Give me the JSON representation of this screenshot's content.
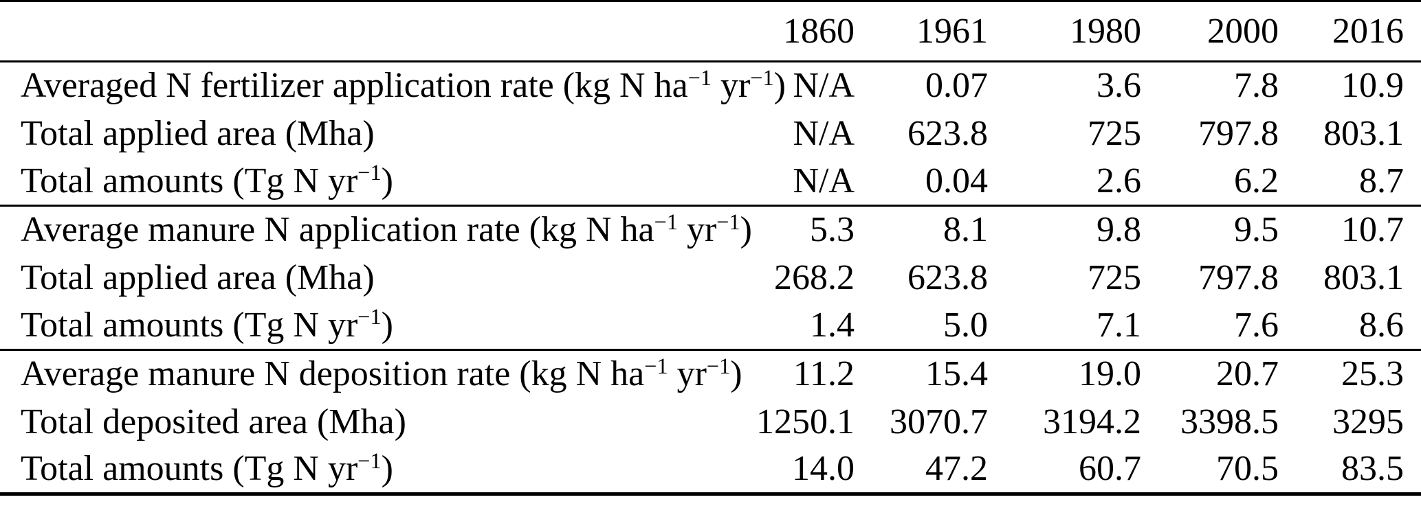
{
  "table": {
    "columns": [
      "1860",
      "1961",
      "1980",
      "2000",
      "2016"
    ],
    "sections": [
      {
        "name": "fertilizer",
        "rows": [
          {
            "label": "Averaged N fertilizer application rate (kg N ha^{−1} yr^{−1})",
            "values": [
              "N/A",
              "0.07",
              "3.6",
              "7.8",
              "10.9"
            ]
          },
          {
            "label": "Total applied area (Mha)",
            "values": [
              "N/A",
              "623.8",
              "725",
              "797.8",
              "803.1"
            ]
          },
          {
            "label": "Total amounts (Tg N yr^{−1})",
            "values": [
              "N/A",
              "0.04",
              "2.6",
              "6.2",
              "8.7"
            ]
          }
        ]
      },
      {
        "name": "manure-application",
        "rows": [
          {
            "label": "Average manure N application rate (kg N ha^{−1} yr^{−1})",
            "values": [
              "5.3",
              "8.1",
              "9.8",
              "9.5",
              "10.7"
            ]
          },
          {
            "label": "Total applied area (Mha)",
            "values": [
              "268.2",
              "623.8",
              "725",
              "797.8",
              "803.1"
            ]
          },
          {
            "label": "Total amounts (Tg N yr^{−1})",
            "values": [
              "1.4",
              "5.0",
              "7.1",
              "7.6",
              "8.6"
            ]
          }
        ]
      },
      {
        "name": "manure-deposition",
        "rows": [
          {
            "label": "Average manure N deposition rate (kg N ha^{−1} yr^{−1})",
            "values": [
              "11.2",
              "15.4",
              "19.0",
              "20.7",
              "25.3"
            ]
          },
          {
            "label": "Total deposited area (Mha)",
            "values": [
              "1250.1",
              "3070.7",
              "3194.2",
              "3398.5",
              "3295"
            ]
          },
          {
            "label": "Total amounts (Tg N yr^{−1})",
            "values": [
              "14.0",
              "47.2",
              "60.7",
              "70.5",
              "83.5"
            ]
          }
        ]
      }
    ]
  }
}
